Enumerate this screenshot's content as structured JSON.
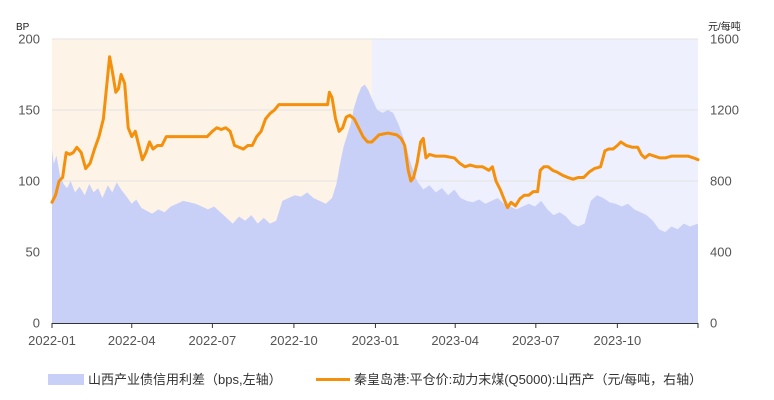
{
  "chart_data": {
    "type": "area",
    "left_axis_unit": "BP",
    "right_axis_unit": "元/每吨",
    "x_ticks": [
      "2022-01",
      "2022-04",
      "2022-07",
      "2022-10",
      "2023-01",
      "2023-04",
      "2023-07",
      "2023-10"
    ],
    "y_left": {
      "range": [
        0,
        200
      ],
      "ticks": [
        0,
        50,
        100,
        150,
        200
      ]
    },
    "y_right": {
      "range": [
        0,
        1600
      ],
      "ticks": [
        0,
        400,
        800,
        1200,
        1600
      ]
    },
    "grid": true,
    "legend_position": "bottom",
    "shaded_periods": [
      {
        "from": "2022-01-01",
        "to": "2022-12-28",
        "color": "#fdf3e6"
      },
      {
        "from": "2022-12-28",
        "to": "2023-12-31",
        "color": "#eef0fd"
      }
    ],
    "series": [
      {
        "name": "山西产业债信用利差（bps,左轴）",
        "type": "area",
        "axis": "left",
        "color": "#c9d0f8",
        "points": [
          [
            "2022-01-01",
            122
          ],
          [
            "2022-01-03",
            112
          ],
          [
            "2022-01-06",
            118
          ],
          [
            "2022-01-10",
            104
          ],
          [
            "2022-01-14",
            98
          ],
          [
            "2022-01-18",
            95
          ],
          [
            "2022-01-22",
            100
          ],
          [
            "2022-01-27",
            92
          ],
          [
            "2022-02-01",
            96
          ],
          [
            "2022-02-07",
            90
          ],
          [
            "2022-02-12",
            98
          ],
          [
            "2022-02-17",
            92
          ],
          [
            "2022-02-22",
            95
          ],
          [
            "2022-02-27",
            88
          ],
          [
            "2022-03-05",
            97
          ],
          [
            "2022-03-10",
            92
          ],
          [
            "2022-03-15",
            99
          ],
          [
            "2022-03-20",
            94
          ],
          [
            "2022-03-25",
            90
          ],
          [
            "2022-04-01",
            84
          ],
          [
            "2022-04-06",
            87
          ],
          [
            "2022-04-12",
            81
          ],
          [
            "2022-04-18",
            79
          ],
          [
            "2022-04-24",
            77
          ],
          [
            "2022-05-01",
            80
          ],
          [
            "2022-05-08",
            78
          ],
          [
            "2022-05-15",
            82
          ],
          [
            "2022-05-22",
            84
          ],
          [
            "2022-05-29",
            86
          ],
          [
            "2022-06-05",
            85
          ],
          [
            "2022-06-12",
            84
          ],
          [
            "2022-06-19",
            82
          ],
          [
            "2022-06-26",
            80
          ],
          [
            "2022-07-03",
            82
          ],
          [
            "2022-07-10",
            78
          ],
          [
            "2022-07-17",
            74
          ],
          [
            "2022-07-24",
            70
          ],
          [
            "2022-07-31",
            75
          ],
          [
            "2022-08-07",
            72
          ],
          [
            "2022-08-14",
            76
          ],
          [
            "2022-08-21",
            70
          ],
          [
            "2022-08-28",
            74
          ],
          [
            "2022-09-04",
            70
          ],
          [
            "2022-09-11",
            72
          ],
          [
            "2022-09-18",
            86
          ],
          [
            "2022-09-25",
            88
          ],
          [
            "2022-10-02",
            90
          ],
          [
            "2022-10-09",
            89
          ],
          [
            "2022-10-16",
            92
          ],
          [
            "2022-10-23",
            88
          ],
          [
            "2022-10-30",
            86
          ],
          [
            "2022-11-06",
            84
          ],
          [
            "2022-11-13",
            88
          ],
          [
            "2022-11-18",
            98
          ],
          [
            "2022-11-22",
            112
          ],
          [
            "2022-11-26",
            124
          ],
          [
            "2022-11-30",
            132
          ],
          [
            "2022-12-04",
            140
          ],
          [
            "2022-12-08",
            152
          ],
          [
            "2022-12-12",
            160
          ],
          [
            "2022-12-16",
            166
          ],
          [
            "2022-12-20",
            168
          ],
          [
            "2022-12-24",
            164
          ],
          [
            "2022-12-28",
            158
          ],
          [
            "2023-01-03",
            150
          ],
          [
            "2023-01-09",
            148
          ],
          [
            "2023-01-15",
            150
          ],
          [
            "2023-01-21",
            148
          ],
          [
            "2023-01-27",
            140
          ],
          [
            "2023-02-03",
            128
          ],
          [
            "2023-02-10",
            112
          ],
          [
            "2023-02-17",
            100
          ],
          [
            "2023-02-24",
            94
          ],
          [
            "2023-03-03",
            97
          ],
          [
            "2023-03-10",
            92
          ],
          [
            "2023-03-17",
            95
          ],
          [
            "2023-03-24",
            90
          ],
          [
            "2023-03-31",
            94
          ],
          [
            "2023-04-07",
            88
          ],
          [
            "2023-04-14",
            86
          ],
          [
            "2023-04-21",
            85
          ],
          [
            "2023-04-28",
            87
          ],
          [
            "2023-05-05",
            84
          ],
          [
            "2023-05-12",
            86
          ],
          [
            "2023-05-19",
            88
          ],
          [
            "2023-05-26",
            84
          ],
          [
            "2023-06-02",
            82
          ],
          [
            "2023-06-09",
            80
          ],
          [
            "2023-06-16",
            82
          ],
          [
            "2023-06-23",
            84
          ],
          [
            "2023-06-30",
            82
          ],
          [
            "2023-07-07",
            86
          ],
          [
            "2023-07-14",
            80
          ],
          [
            "2023-07-21",
            76
          ],
          [
            "2023-07-28",
            78
          ],
          [
            "2023-08-04",
            75
          ],
          [
            "2023-08-11",
            70
          ],
          [
            "2023-08-18",
            68
          ],
          [
            "2023-08-25",
            70
          ],
          [
            "2023-09-01",
            86
          ],
          [
            "2023-09-08",
            90
          ],
          [
            "2023-09-15",
            88
          ],
          [
            "2023-09-22",
            85
          ],
          [
            "2023-09-29",
            84
          ],
          [
            "2023-10-06",
            82
          ],
          [
            "2023-10-13",
            84
          ],
          [
            "2023-10-20",
            80
          ],
          [
            "2023-10-27",
            78
          ],
          [
            "2023-11-03",
            76
          ],
          [
            "2023-11-10",
            72
          ],
          [
            "2023-11-17",
            66
          ],
          [
            "2023-11-24",
            64
          ],
          [
            "2023-12-01",
            68
          ],
          [
            "2023-12-08",
            66
          ],
          [
            "2023-12-15",
            70
          ],
          [
            "2023-12-22",
            68
          ],
          [
            "2023-12-31",
            70
          ]
        ]
      },
      {
        "name": "秦皇岛港:平仓价:动力末煤(Q5000):山西产（元/每吨，右轴）",
        "type": "line",
        "axis": "right",
        "color": "#f5900c",
        "points": [
          [
            "2022-01-01",
            680
          ],
          [
            "2022-01-05",
            720
          ],
          [
            "2022-01-09",
            800
          ],
          [
            "2022-01-13",
            820
          ],
          [
            "2022-01-17",
            960
          ],
          [
            "2022-01-21",
            950
          ],
          [
            "2022-01-25",
            960
          ],
          [
            "2022-01-29",
            990
          ],
          [
            "2022-02-03",
            960
          ],
          [
            "2022-02-08",
            870
          ],
          [
            "2022-02-13",
            900
          ],
          [
            "2022-02-18",
            980
          ],
          [
            "2022-02-23",
            1050
          ],
          [
            "2022-02-28",
            1150
          ],
          [
            "2022-03-04",
            1350
          ],
          [
            "2022-03-07",
            1500
          ],
          [
            "2022-03-10",
            1420
          ],
          [
            "2022-03-14",
            1300
          ],
          [
            "2022-03-17",
            1320
          ],
          [
            "2022-03-20",
            1400
          ],
          [
            "2022-03-24",
            1350
          ],
          [
            "2022-03-28",
            1100
          ],
          [
            "2022-04-01",
            1050
          ],
          [
            "2022-04-05",
            1080
          ],
          [
            "2022-04-09",
            1000
          ],
          [
            "2022-04-13",
            920
          ],
          [
            "2022-04-17",
            960
          ],
          [
            "2022-04-21",
            1020
          ],
          [
            "2022-04-25",
            980
          ],
          [
            "2022-04-30",
            1000
          ],
          [
            "2022-05-05",
            1000
          ],
          [
            "2022-05-10",
            1050
          ],
          [
            "2022-05-20",
            1050
          ],
          [
            "2022-06-01",
            1050
          ],
          [
            "2022-06-15",
            1050
          ],
          [
            "2022-06-25",
            1050
          ],
          [
            "2022-07-01",
            1080
          ],
          [
            "2022-07-06",
            1100
          ],
          [
            "2022-07-11",
            1090
          ],
          [
            "2022-07-16",
            1100
          ],
          [
            "2022-07-21",
            1080
          ],
          [
            "2022-07-26",
            1000
          ],
          [
            "2022-07-31",
            990
          ],
          [
            "2022-08-05",
            980
          ],
          [
            "2022-08-10",
            1000
          ],
          [
            "2022-08-15",
            1000
          ],
          [
            "2022-08-20",
            1050
          ],
          [
            "2022-08-25",
            1080
          ],
          [
            "2022-08-30",
            1150
          ],
          [
            "2022-09-04",
            1180
          ],
          [
            "2022-09-09",
            1200
          ],
          [
            "2022-09-14",
            1230
          ],
          [
            "2022-09-19",
            1230
          ],
          [
            "2022-10-01",
            1230
          ],
          [
            "2022-10-15",
            1230
          ],
          [
            "2022-10-30",
            1230
          ],
          [
            "2022-11-08",
            1230
          ],
          [
            "2022-11-10",
            1300
          ],
          [
            "2022-11-13",
            1270
          ],
          [
            "2022-11-17",
            1150
          ],
          [
            "2022-11-21",
            1080
          ],
          [
            "2022-11-25",
            1100
          ],
          [
            "2022-11-29",
            1160
          ],
          [
            "2022-12-03",
            1170
          ],
          [
            "2022-12-08",
            1150
          ],
          [
            "2022-12-13",
            1100
          ],
          [
            "2022-12-18",
            1050
          ],
          [
            "2022-12-23",
            1020
          ],
          [
            "2022-12-28",
            1020
          ],
          [
            "2023-01-05",
            1060
          ],
          [
            "2023-01-15",
            1070
          ],
          [
            "2023-01-25",
            1060
          ],
          [
            "2023-01-30",
            1040
          ],
          [
            "2023-02-03",
            1000
          ],
          [
            "2023-02-07",
            860
          ],
          [
            "2023-02-10",
            800
          ],
          [
            "2023-02-13",
            820
          ],
          [
            "2023-02-17",
            900
          ],
          [
            "2023-02-21",
            1020
          ],
          [
            "2023-02-24",
            1040
          ],
          [
            "2023-02-27",
            930
          ],
          [
            "2023-03-03",
            950
          ],
          [
            "2023-03-10",
            940
          ],
          [
            "2023-03-20",
            940
          ],
          [
            "2023-03-31",
            930
          ],
          [
            "2023-04-06",
            900
          ],
          [
            "2023-04-12",
            880
          ],
          [
            "2023-04-18",
            890
          ],
          [
            "2023-04-25",
            880
          ],
          [
            "2023-05-02",
            880
          ],
          [
            "2023-05-09",
            860
          ],
          [
            "2023-05-13",
            880
          ],
          [
            "2023-05-17",
            800
          ],
          [
            "2023-05-22",
            750
          ],
          [
            "2023-05-26",
            700
          ],
          [
            "2023-05-30",
            650
          ],
          [
            "2023-06-03",
            680
          ],
          [
            "2023-06-08",
            660
          ],
          [
            "2023-06-13",
            700
          ],
          [
            "2023-06-18",
            720
          ],
          [
            "2023-06-23",
            720
          ],
          [
            "2023-06-28",
            740
          ],
          [
            "2023-07-03",
            740
          ],
          [
            "2023-07-06",
            860
          ],
          [
            "2023-07-10",
            880
          ],
          [
            "2023-07-15",
            880
          ],
          [
            "2023-07-20",
            860
          ],
          [
            "2023-07-25",
            850
          ],
          [
            "2023-08-01",
            830
          ],
          [
            "2023-08-06",
            820
          ],
          [
            "2023-08-12",
            810
          ],
          [
            "2023-08-18",
            820
          ],
          [
            "2023-08-24",
            820
          ],
          [
            "2023-08-30",
            850
          ],
          [
            "2023-09-05",
            870
          ],
          [
            "2023-09-12",
            880
          ],
          [
            "2023-09-17",
            970
          ],
          [
            "2023-09-21",
            980
          ],
          [
            "2023-09-26",
            980
          ],
          [
            "2023-10-01",
            1000
          ],
          [
            "2023-10-05",
            1020
          ],
          [
            "2023-10-11",
            1000
          ],
          [
            "2023-10-18",
            990
          ],
          [
            "2023-10-24",
            990
          ],
          [
            "2023-10-28",
            950
          ],
          [
            "2023-11-01",
            930
          ],
          [
            "2023-11-06",
            950
          ],
          [
            "2023-11-12",
            940
          ],
          [
            "2023-11-18",
            930
          ],
          [
            "2023-11-24",
            930
          ],
          [
            "2023-12-01",
            940
          ],
          [
            "2023-12-10",
            940
          ],
          [
            "2023-12-20",
            940
          ],
          [
            "2023-12-26",
            930
          ],
          [
            "2023-12-31",
            920
          ]
        ]
      }
    ]
  }
}
